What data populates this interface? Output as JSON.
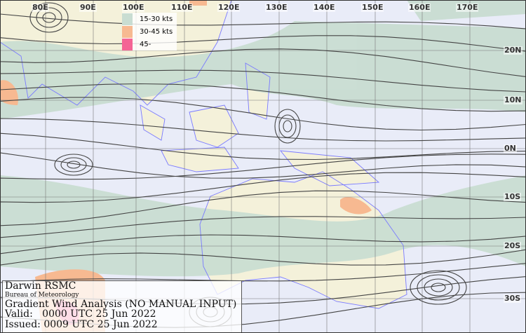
{
  "map": {
    "longitude_labels": [
      "80E",
      "90E",
      "100E",
      "110E",
      "120E",
      "130E",
      "140E",
      "150E",
      "160E",
      "170E"
    ],
    "latitude_labels": [
      "20N",
      "10N",
      "0N",
      "10S",
      "20S",
      "30S"
    ],
    "colors": {
      "sea": "#e9ecf8",
      "land": "#f4f1da",
      "coast": "#7a7aff",
      "streamline": "#444444",
      "grid": "#777777"
    }
  },
  "legend": {
    "items": [
      {
        "label": "15-30 kts",
        "color": "#c9ddd2"
      },
      {
        "label": "30-45 kts",
        "color": "#f7b991"
      },
      {
        "label": "45-",
        "color": "#f46495"
      }
    ]
  },
  "info": {
    "center": "Darwin RSMC",
    "agency": "Bureau of Meteorology",
    "title": "Gradient Wind Analysis (NO MANUAL INPUT)",
    "valid": "Valid:   0000 UTC 25 Jun 2022",
    "issued": "Issued: 0009 UTC 25 Jun 2022"
  }
}
